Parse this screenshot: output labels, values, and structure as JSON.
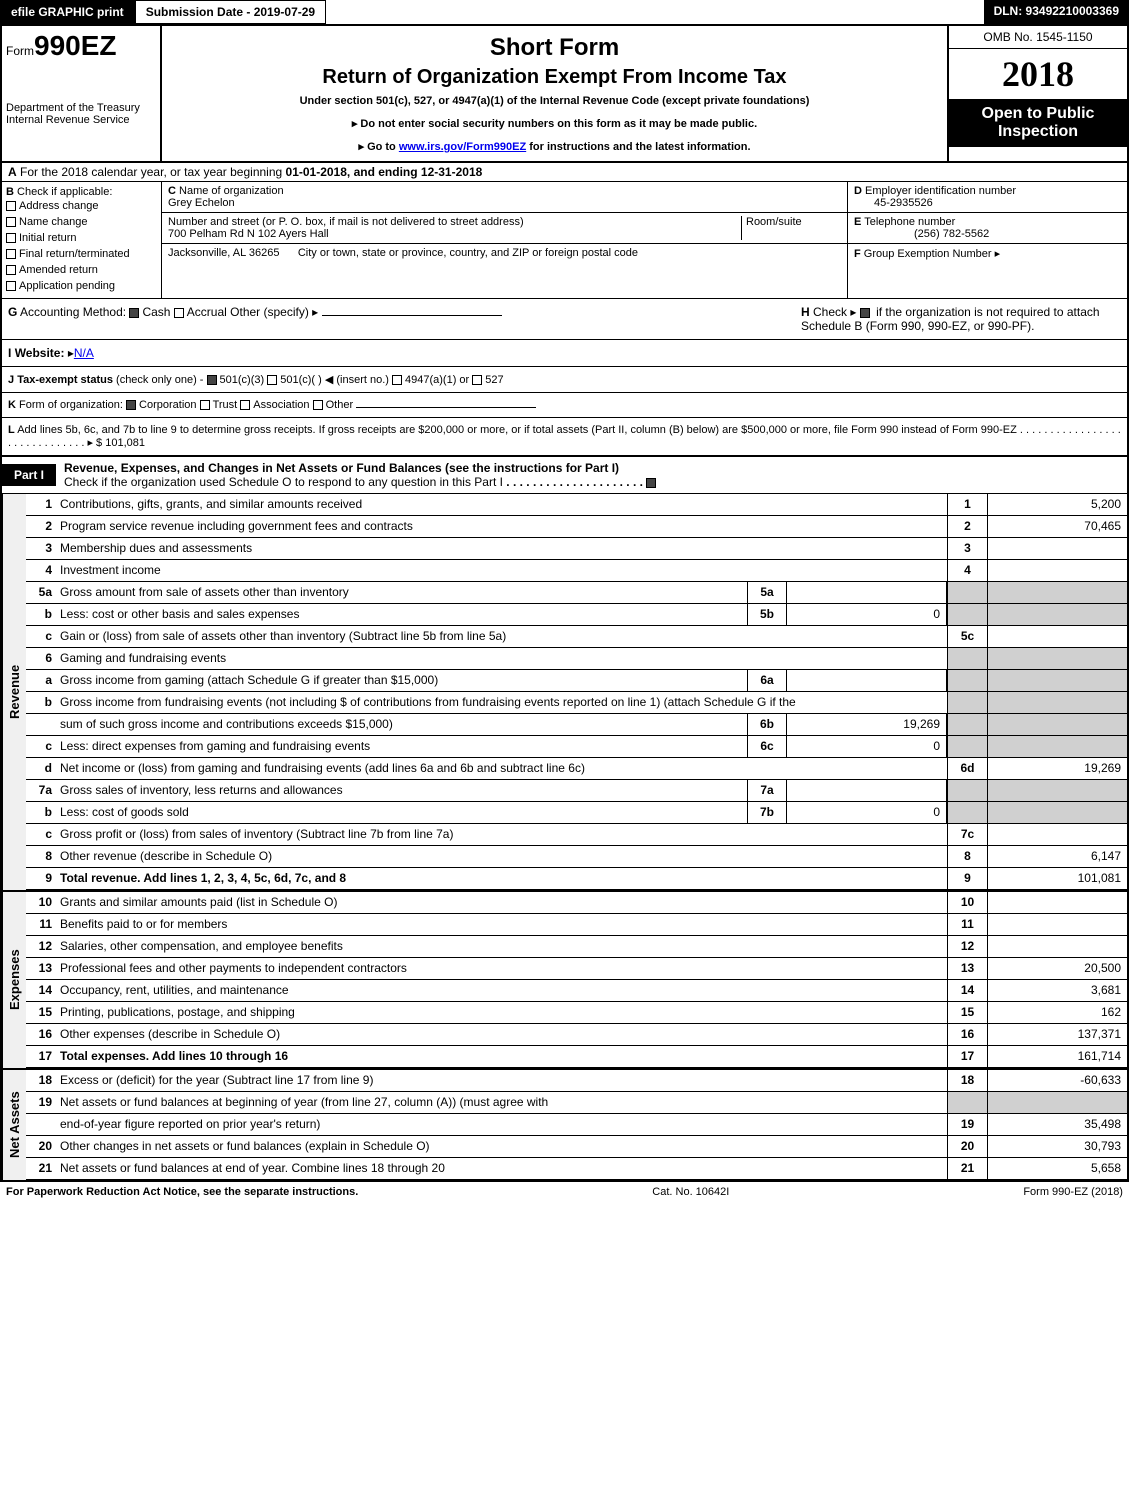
{
  "topbar": {
    "efile": "efile GRAPHIC print",
    "submission": "Submission Date - 2019-07-29",
    "dln": "DLN: 93492210003369"
  },
  "header": {
    "form_word": "Form",
    "form_num": "990EZ",
    "short_form": "Short Form",
    "title": "Return of Organization Exempt From Income Tax",
    "subtitle": "Under section 501(c), 527, or 4947(a)(1) of the Internal Revenue Code (except private foundations)",
    "instr1": "Do not enter social security numbers on this form as it may be made public.",
    "instr2_pre": "Go to ",
    "instr2_link": "www.irs.gov/Form990EZ",
    "instr2_post": " for instructions and the latest information.",
    "omb": "OMB No. 1545-1150",
    "year": "2018",
    "open": "Open to Public Inspection",
    "dept1": "Department of the Treasury",
    "dept2": "Internal Revenue Service"
  },
  "line_a": {
    "text_pre": "For the 2018 calendar year, or tax year beginning ",
    "begin": "01-01-2018",
    "mid": ", and ending ",
    "end": "12-31-2018"
  },
  "section_b": {
    "label": "Check if applicable:",
    "items": [
      "Address change",
      "Name change",
      "Initial return",
      "Final return/terminated",
      "Amended return",
      "Application pending"
    ]
  },
  "section_c": {
    "name_label": "Name of organization",
    "name": "Grey Echelon",
    "addr_label": "Number and street (or P. O. box, if mail is not delivered to street address)",
    "addr": "700 Pelham Rd N 102 Ayers Hall",
    "room_label": "Room/suite",
    "city_label": "City or town, state or province, country, and ZIP or foreign postal code",
    "city": "Jacksonville, AL  36265"
  },
  "section_d": {
    "ein_label": "Employer identification number",
    "ein": "45-2935526",
    "phone_label": "Telephone number",
    "phone": "(256) 782-5562",
    "group_label": "Group Exemption Number"
  },
  "line_g": {
    "label": "Accounting Method:",
    "opts": [
      "Cash",
      "Accrual",
      "Other (specify)"
    ],
    "h_label": "Check",
    "h_text": "if the organization is not required to attach Schedule B (Form 990, 990-EZ, or 990-PF)."
  },
  "line_i": {
    "label": "Website:",
    "value": "N/A"
  },
  "line_j": {
    "label": "Tax-exempt status",
    "note": "(check only one) -",
    "opts": [
      "501(c)(3)",
      "501(c)(  )",
      "(insert no.)",
      "4947(a)(1) or",
      "527"
    ]
  },
  "line_k": {
    "label": "Form of organization:",
    "opts": [
      "Corporation",
      "Trust",
      "Association",
      "Other"
    ]
  },
  "line_l": {
    "text": "Add lines 5b, 6c, and 7b to line 9 to determine gross receipts. If gross receipts are $200,000 or more, or if total assets (Part II, column (B) below) are $500,000 or more, file Form 990 instead of Form 990-EZ",
    "amount": "$ 101,081"
  },
  "part1": {
    "label": "Part I",
    "title": "Revenue, Expenses, and Changes in Net Assets or Fund Balances (see the instructions for Part I)",
    "check_text": "Check if the organization used Schedule O to respond to any question in this Part I"
  },
  "sections": {
    "revenue": "Revenue",
    "expenses": "Expenses",
    "netassets": "Net Assets"
  },
  "rows": [
    {
      "n": "1",
      "d": "Contributions, gifts, grants, and similar amounts received",
      "box": "1",
      "val": "5,200"
    },
    {
      "n": "2",
      "d": "Program service revenue including government fees and contracts",
      "box": "2",
      "val": "70,465"
    },
    {
      "n": "3",
      "d": "Membership dues and assessments",
      "box": "3",
      "val": ""
    },
    {
      "n": "4",
      "d": "Investment income",
      "box": "4",
      "val": ""
    },
    {
      "n": "5a",
      "d": "Gross amount from sale of assets other than inventory",
      "mid": "5a",
      "midval": ""
    },
    {
      "n": "b",
      "d": "Less: cost or other basis and sales expenses",
      "mid": "5b",
      "midval": "0"
    },
    {
      "n": "c",
      "d": "Gain or (loss) from sale of assets other than inventory (Subtract line 5b from line 5a)",
      "box": "5c",
      "val": ""
    },
    {
      "n": "6",
      "d": "Gaming and fundraising events"
    },
    {
      "n": "a",
      "d": "Gross income from gaming (attach Schedule G if greater than $15,000)",
      "mid": "6a",
      "midval": ""
    },
    {
      "n": "b",
      "d": "Gross income from fundraising events (not including $                          of contributions from fundraising events reported on line 1) (attach Schedule G if the"
    },
    {
      "n": "",
      "d": "sum of such gross income and contributions exceeds $15,000)",
      "mid": "6b",
      "midval": "19,269"
    },
    {
      "n": "c",
      "d": "Less: direct expenses from gaming and fundraising events",
      "mid": "6c",
      "midval": "0"
    },
    {
      "n": "d",
      "d": "Net income or (loss) from gaming and fundraising events (add lines 6a and 6b and subtract line 6c)",
      "box": "6d",
      "val": "19,269"
    },
    {
      "n": "7a",
      "d": "Gross sales of inventory, less returns and allowances",
      "mid": "7a",
      "midval": ""
    },
    {
      "n": "b",
      "d": "Less: cost of goods sold",
      "mid": "7b",
      "midval": "0"
    },
    {
      "n": "c",
      "d": "Gross profit or (loss) from sales of inventory (Subtract line 7b from line 7a)",
      "box": "7c",
      "val": ""
    },
    {
      "n": "8",
      "d": "Other revenue (describe in Schedule O)",
      "box": "8",
      "val": "6,147"
    },
    {
      "n": "9",
      "d": "Total revenue. Add lines 1, 2, 3, 4, 5c, 6d, 7c, and 8",
      "box": "9",
      "val": "101,081",
      "bold": true
    }
  ],
  "exp_rows": [
    {
      "n": "10",
      "d": "Grants and similar amounts paid (list in Schedule O)",
      "box": "10",
      "val": ""
    },
    {
      "n": "11",
      "d": "Benefits paid to or for members",
      "box": "11",
      "val": ""
    },
    {
      "n": "12",
      "d": "Salaries, other compensation, and employee benefits",
      "box": "12",
      "val": ""
    },
    {
      "n": "13",
      "d": "Professional fees and other payments to independent contractors",
      "box": "13",
      "val": "20,500"
    },
    {
      "n": "14",
      "d": "Occupancy, rent, utilities, and maintenance",
      "box": "14",
      "val": "3,681"
    },
    {
      "n": "15",
      "d": "Printing, publications, postage, and shipping",
      "box": "15",
      "val": "162"
    },
    {
      "n": "16",
      "d": "Other expenses (describe in Schedule O)",
      "box": "16",
      "val": "137,371"
    },
    {
      "n": "17",
      "d": "Total expenses. Add lines 10 through 16",
      "box": "17",
      "val": "161,714",
      "bold": true
    }
  ],
  "net_rows": [
    {
      "n": "18",
      "d": "Excess or (deficit) for the year (Subtract line 17 from line 9)",
      "box": "18",
      "val": "-60,633"
    },
    {
      "n": "19",
      "d": "Net assets or fund balances at beginning of year (from line 27, column (A)) (must agree with"
    },
    {
      "n": "",
      "d": "end-of-year figure reported on prior year's return)",
      "box": "19",
      "val": "35,498"
    },
    {
      "n": "20",
      "d": "Other changes in net assets or fund balances (explain in Schedule O)",
      "box": "20",
      "val": "30,793"
    },
    {
      "n": "21",
      "d": "Net assets or fund balances at end of year. Combine lines 18 through 20",
      "box": "21",
      "val": "5,658"
    }
  ],
  "footer": {
    "left": "For Paperwork Reduction Act Notice, see the separate instructions.",
    "mid": "Cat. No. 10642I",
    "right": "Form 990-EZ (2018)"
  },
  "letters": {
    "A": "A",
    "B": "B",
    "C": "C",
    "D": "D",
    "E": "E",
    "F": "F",
    "G": "G",
    "H": "H",
    "I": "I",
    "J": "J",
    "K": "K",
    "L": "L"
  }
}
